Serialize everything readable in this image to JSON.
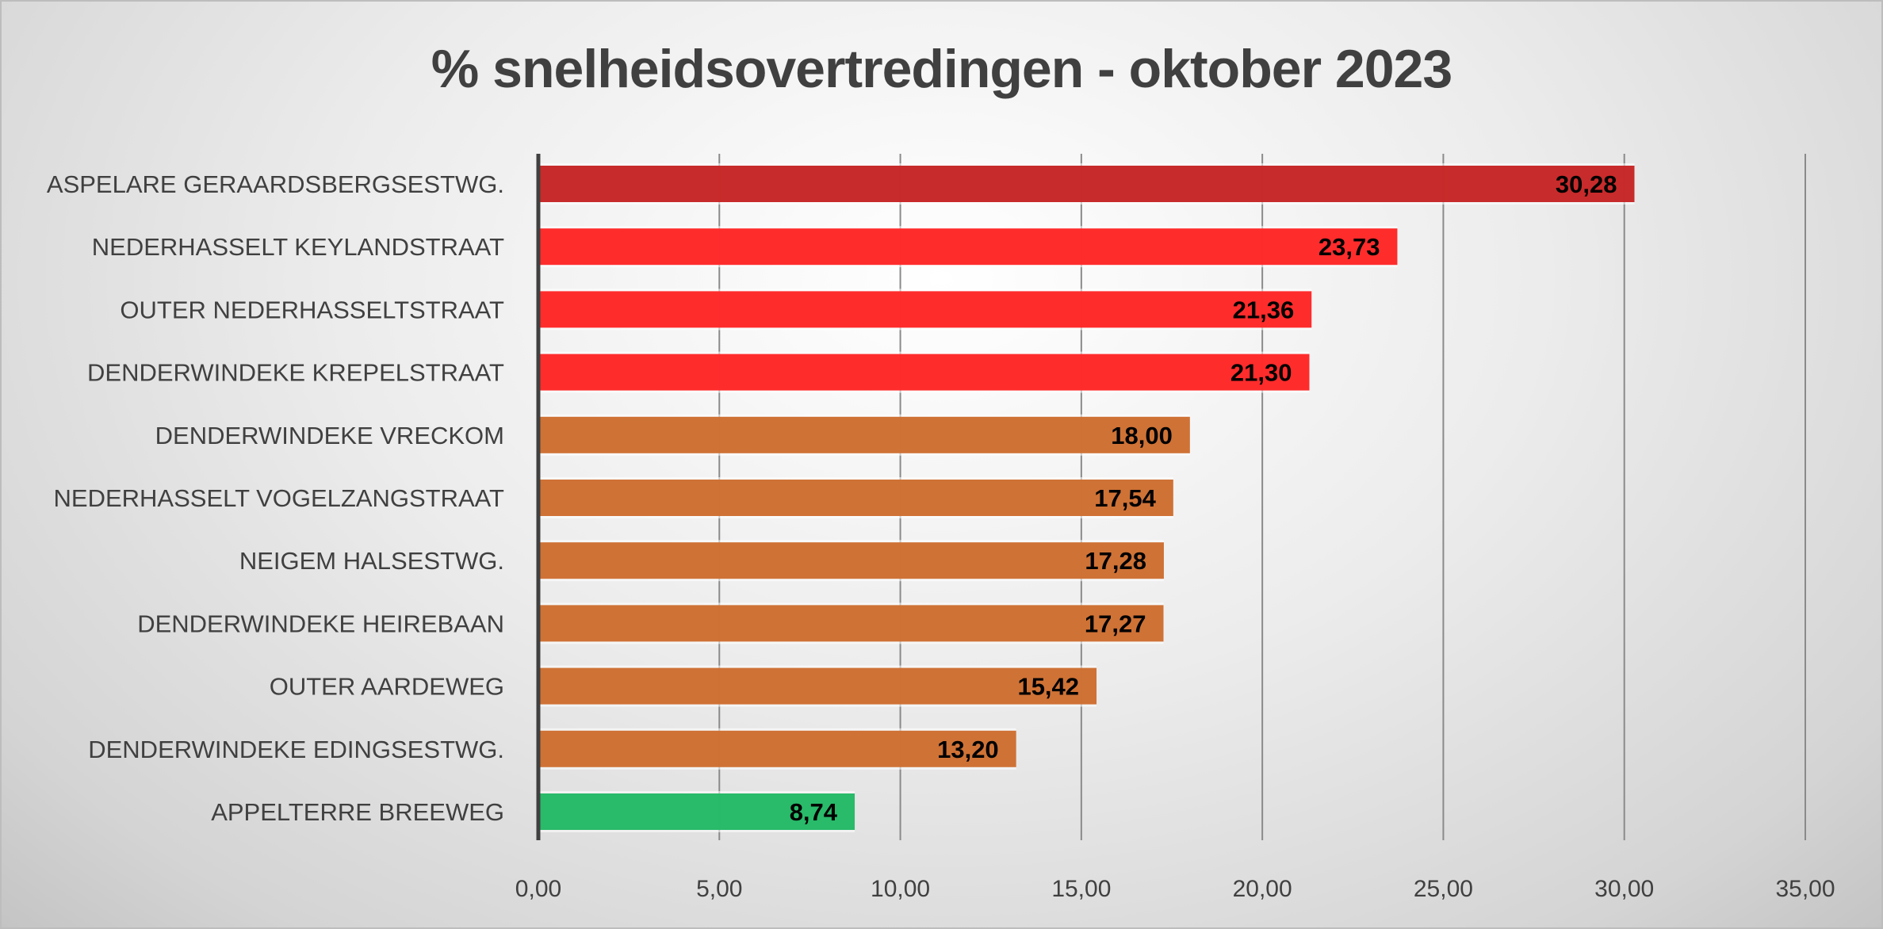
{
  "chart_data": {
    "type": "bar",
    "orientation": "horizontal",
    "title": "% snelheidsovertredingen - oktober 2023",
    "categories": [
      "ASPELARE GERAARDSBERGSESTWG.",
      "NEDERHASSELT KEYLANDSTRAAT",
      "OUTER NEDERHASSELTSTRAAT",
      "DENDERWINDEKE KREPELSTRAAT",
      "DENDERWINDEKE VRECKOM",
      "NEDERHASSELT VOGELZANGSTRAAT",
      "NEIGEM HALSESTWG.",
      "DENDERWINDEKE HEIREBAAN",
      "OUTER AARDEWEG",
      "DENDERWINDEKE EDINGSESTWG.",
      "APPELTERRE BREEWEG"
    ],
    "values": [
      30.28,
      23.73,
      21.36,
      21.3,
      18.0,
      17.54,
      17.28,
      17.27,
      15.42,
      13.2,
      8.74
    ],
    "value_labels": [
      "30,28",
      "23,73",
      "21,36",
      "21,30",
      "18,00",
      "17,54",
      "17,28",
      "17,27",
      "15,42",
      "13,20",
      "8,74"
    ],
    "colors": [
      "#C62424",
      "#FF2525",
      "#FF2525",
      "#FF2525",
      "#CD6D30",
      "#CD6D30",
      "#CD6D30",
      "#CD6D30",
      "#CD6D30",
      "#CD6D30",
      "#22B865"
    ],
    "xlim": [
      0,
      35
    ],
    "xticks": [
      0,
      5,
      10,
      15,
      20,
      25,
      30,
      35
    ],
    "xtick_labels": [
      "0,00",
      "5,00",
      "10,00",
      "15,00",
      "20,00",
      "25,00",
      "30,00",
      "35,00"
    ],
    "grid": true,
    "legend": "none"
  }
}
